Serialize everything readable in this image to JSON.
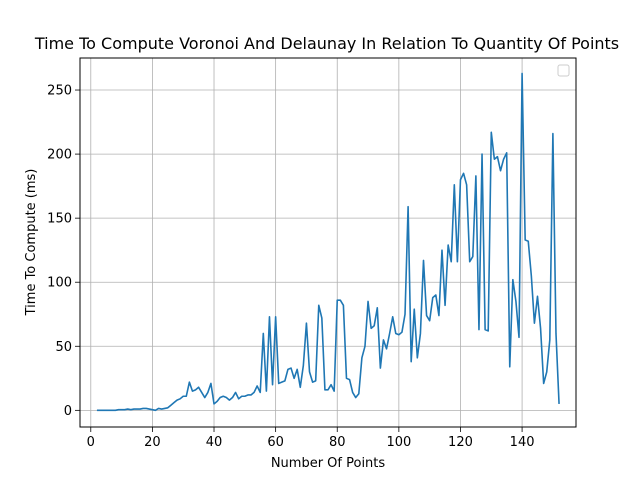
{
  "chart_data": {
    "type": "line",
    "title": "Time To Compute Voronoi And Delaunay In Relation To Quantity Of Points",
    "xlabel": "Number Of Points",
    "ylabel": "Time To Compute (ms)",
    "xlim": [
      -3.5,
      157.5
    ],
    "ylim": [
      -13,
      275
    ],
    "xticks": [
      0,
      20,
      40,
      60,
      80,
      100,
      120,
      140
    ],
    "yticks": [
      0,
      50,
      100,
      150,
      200,
      250
    ],
    "grid": true,
    "legend": "top-right",
    "series": [
      {
        "color": "#1f77b4",
        "x": [
          2,
          3,
          4,
          5,
          6,
          7,
          8,
          9,
          10,
          11,
          12,
          13,
          14,
          15,
          16,
          17,
          18,
          19,
          20,
          21,
          22,
          23,
          24,
          25,
          26,
          27,
          28,
          29,
          30,
          31,
          32,
          33,
          34,
          35,
          36,
          37,
          38,
          39,
          40,
          41,
          42,
          43,
          44,
          45,
          46,
          47,
          48,
          49,
          50,
          51,
          52,
          53,
          54,
          55,
          56,
          57,
          58,
          59,
          60,
          61,
          62,
          63,
          64,
          65,
          66,
          67,
          68,
          69,
          70,
          71,
          72,
          73,
          74,
          75,
          76,
          77,
          78,
          79,
          80,
          81,
          82,
          83,
          84,
          85,
          86,
          87,
          88,
          89,
          90,
          91,
          92,
          93,
          94,
          95,
          96,
          97,
          98,
          99,
          100,
          101,
          102,
          103,
          104,
          105,
          106,
          107,
          108,
          109,
          110,
          111,
          112,
          113,
          114,
          115,
          116,
          117,
          118,
          119,
          120,
          121,
          122,
          123,
          124,
          125,
          126,
          127,
          128,
          129,
          130,
          131,
          132,
          133,
          134,
          135,
          136,
          137,
          138,
          139,
          140,
          141,
          142,
          143,
          144,
          145,
          146,
          147,
          148,
          149,
          150,
          151,
          152
        ],
        "y": [
          0,
          0,
          0,
          0,
          0,
          0,
          0,
          0.5,
          0.5,
          0.5,
          1,
          0.5,
          1,
          1,
          1,
          1.5,
          1.5,
          1,
          0.5,
          0,
          1.5,
          1,
          1.5,
          2,
          4,
          6,
          8,
          9,
          11,
          11,
          22,
          15,
          16,
          18,
          14,
          10,
          14,
          21,
          5,
          7,
          10,
          11,
          10,
          8,
          10,
          14,
          9,
          11,
          11,
          12,
          12,
          14,
          19,
          14,
          60,
          15,
          73,
          20,
          73,
          21,
          22,
          23,
          32,
          33,
          25,
          32,
          18,
          35,
          68,
          30,
          22,
          23,
          82,
          72,
          16,
          16,
          20,
          15,
          86,
          86,
          82,
          25,
          24,
          14,
          10,
          13,
          41,
          50,
          85,
          64,
          66,
          80,
          33,
          55,
          48,
          60,
          73,
          60,
          59,
          61,
          75,
          159,
          38,
          79,
          41,
          60,
          117,
          74,
          70,
          88,
          90,
          74,
          125,
          82,
          129,
          116,
          176,
          116,
          180,
          185,
          176,
          116,
          120,
          183,
          63,
          200,
          63,
          62,
          217,
          196,
          198,
          187,
          196,
          201,
          34,
          102,
          85,
          57,
          263,
          133,
          132,
          105,
          68,
          89,
          64,
          21,
          30,
          55,
          216,
          60,
          5
        ]
      }
    ]
  }
}
